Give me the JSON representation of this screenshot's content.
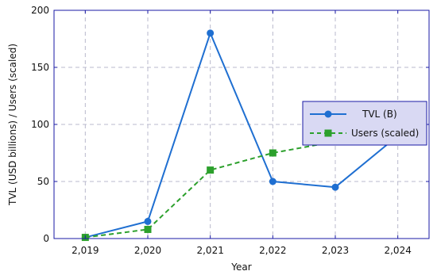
{
  "chart_data": {
    "type": "line",
    "xlabel": "Year",
    "ylabel": "TVL (USD billions) / Users (scaled)",
    "x": [
      2019,
      2020,
      2021,
      2022,
      2023,
      2024
    ],
    "x_tick_labels": [
      "2,019",
      "2,020",
      "2,021",
      "2,022",
      "2,023",
      "2,024"
    ],
    "xlim": [
      2018.5,
      2024.5
    ],
    "ylim": [
      0,
      200
    ],
    "y_ticks": [
      0,
      50,
      100,
      150,
      200
    ],
    "y_tick_labels": [
      "0",
      "50",
      "100",
      "150",
      "200"
    ],
    "grid": true,
    "legend_position": "center-right",
    "series": [
      {
        "name": "TVL (B)",
        "values": [
          1,
          15,
          180,
          50,
          45,
          90
        ],
        "color": "#1f6fd1",
        "line_style": "solid",
        "marker": "circle"
      },
      {
        "name": "Users (scaled)",
        "values": [
          1,
          8,
          60,
          75,
          85,
          95
        ],
        "color": "#2ca02c",
        "line_style": "dashed",
        "marker": "square"
      }
    ],
    "colors": {
      "axis": "#1a1aa6",
      "grid": "#b8b8cc",
      "legend_bg": "#d9d9f3",
      "legend_border": "#1a1aa6"
    }
  }
}
